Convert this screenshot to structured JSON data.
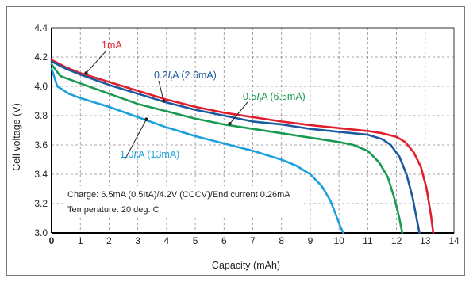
{
  "chart_data": {
    "type": "line",
    "xlabel": "Capacity (mAh)",
    "ylabel": "Cell voltage (V)",
    "xlim": [
      0,
      14
    ],
    "ylim": [
      3.0,
      4.4
    ],
    "x_ticks": [
      "0",
      "1",
      "2",
      "3",
      "4",
      "5",
      "6",
      "7",
      "8",
      "9",
      "10",
      "11",
      "12",
      "13",
      "14"
    ],
    "y_ticks": [
      "3.0",
      "3.2",
      "3.4",
      "3.6",
      "3.8",
      "4.0",
      "4.2",
      "4.4"
    ],
    "grid": "dashed",
    "annotations": [
      "Charge: 6.5mA (0.5ItA)/4.2V (CCCV)/End current 0.26mA",
      "Temperature: 20 deg. C"
    ],
    "series": [
      {
        "name": "1mA",
        "color": "#e01e2c",
        "label_parts": [
          "1mA"
        ],
        "x": [
          0,
          0.5,
          1,
          2,
          3,
          4,
          5,
          6,
          7,
          8,
          9,
          10,
          11,
          11.5,
          12,
          12.3,
          12.6,
          12.85,
          13.05,
          13.2,
          13.28
        ],
        "y": [
          4.18,
          4.13,
          4.09,
          4.03,
          3.97,
          3.91,
          3.86,
          3.82,
          3.79,
          3.76,
          3.735,
          3.715,
          3.695,
          3.68,
          3.655,
          3.62,
          3.55,
          3.45,
          3.3,
          3.12,
          3.0
        ]
      },
      {
        "name": "0.2ItA (2.6mA)",
        "color": "#1c5aa0",
        "label_parts": [
          "0.2",
          "I",
          "t",
          "A (2.6mA)"
        ],
        "x": [
          0,
          0.5,
          1,
          2,
          3,
          4,
          5,
          6,
          7,
          8,
          9,
          10,
          11,
          11.5,
          11.8,
          12.1,
          12.35,
          12.55,
          12.7,
          12.8
        ],
        "y": [
          4.17,
          4.12,
          4.08,
          4.01,
          3.95,
          3.89,
          3.84,
          3.8,
          3.76,
          3.74,
          3.71,
          3.69,
          3.67,
          3.64,
          3.6,
          3.52,
          3.4,
          3.25,
          3.1,
          3.0
        ]
      },
      {
        "name": "0.5ItA (6.5mA)",
        "color": "#1a9a50",
        "label_parts": [
          "0.5",
          "I",
          "t",
          "A (6.5mA)"
        ],
        "x": [
          0,
          0.3,
          1,
          2,
          3,
          4,
          5,
          6,
          7,
          8,
          9,
          10,
          10.5,
          11,
          11.4,
          11.7,
          11.95,
          12.1,
          12.2
        ],
        "y": [
          4.15,
          4.07,
          4.02,
          3.95,
          3.88,
          3.83,
          3.78,
          3.74,
          3.71,
          3.68,
          3.65,
          3.62,
          3.6,
          3.56,
          3.48,
          3.38,
          3.22,
          3.1,
          3.0
        ]
      },
      {
        "name": "1.0ItA (13mA)",
        "color": "#1aa0dd",
        "label_parts": [
          "1.0",
          "I",
          "t",
          "A (13mA)"
        ],
        "x": [
          0,
          0.2,
          0.6,
          1,
          2,
          3,
          4,
          5,
          6,
          7,
          8,
          8.5,
          9,
          9.4,
          9.7,
          9.9,
          10.05,
          10.15
        ],
        "y": [
          4.12,
          4.0,
          3.95,
          3.92,
          3.86,
          3.79,
          3.72,
          3.66,
          3.61,
          3.56,
          3.5,
          3.46,
          3.4,
          3.32,
          3.22,
          3.12,
          3.04,
          3.0
        ]
      }
    ]
  }
}
